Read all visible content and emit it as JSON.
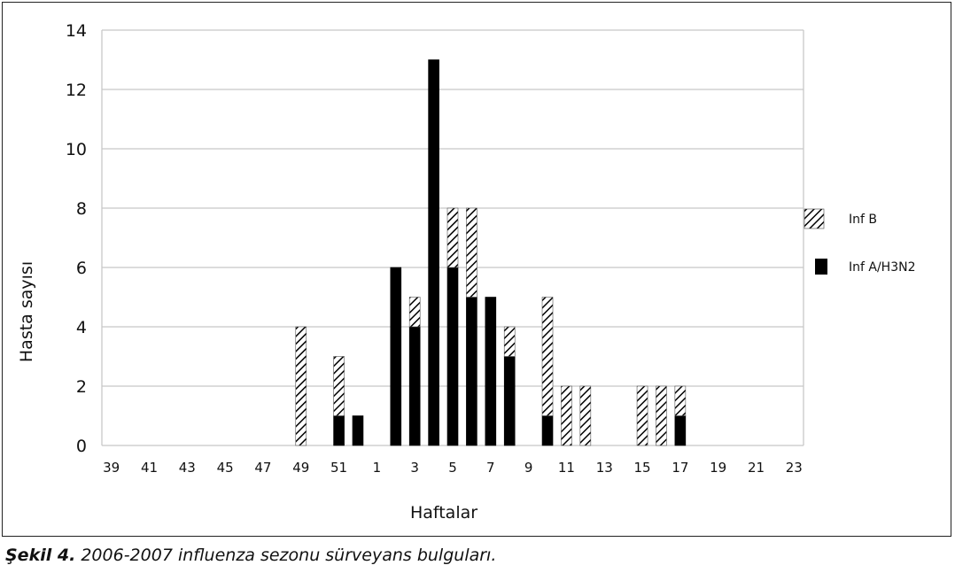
{
  "chart_data": {
    "type": "bar",
    "stacked": true,
    "xlabel": "Haftalar",
    "ylabel": "Hasta sayısı",
    "ylim": [
      0,
      14
    ],
    "y_ticks": [
      0,
      2,
      4,
      6,
      8,
      10,
      12,
      14
    ],
    "grid": true,
    "legend_position": "right",
    "categories": [
      "39",
      "40",
      "41",
      "42",
      "43",
      "44",
      "45",
      "46",
      "47",
      "48",
      "49",
      "50",
      "51",
      "52",
      "1",
      "2",
      "3",
      "4",
      "5",
      "6",
      "7",
      "8",
      "9",
      "10",
      "11",
      "12",
      "13",
      "14",
      "15",
      "16",
      "17",
      "18",
      "19",
      "20",
      "21",
      "22",
      "23"
    ],
    "x_tick_labels": [
      "39",
      "41",
      "43",
      "45",
      "47",
      "49",
      "51",
      "1",
      "3",
      "5",
      "7",
      "9",
      "11",
      "13",
      "15",
      "17",
      "19",
      "21",
      "23"
    ],
    "series": [
      {
        "name": "Inf A/H3N2",
        "color": "#000000",
        "pattern": "solid",
        "values": [
          0,
          0,
          0,
          0,
          0,
          0,
          0,
          0,
          0,
          0,
          0,
          0,
          1,
          1,
          0,
          6,
          4,
          13,
          6,
          5,
          5,
          3,
          0,
          1,
          0,
          0,
          0,
          0,
          0,
          0,
          1,
          0,
          0,
          0,
          0,
          0,
          0
        ]
      },
      {
        "name": "Inf B",
        "color": "#ffffff",
        "pattern": "diagonal-hatch",
        "values": [
          0,
          0,
          0,
          0,
          0,
          0,
          0,
          0,
          0,
          0,
          4,
          0,
          2,
          0,
          0,
          0,
          1,
          0,
          2,
          3,
          0,
          1,
          0,
          4,
          2,
          2,
          0,
          0,
          2,
          2,
          1,
          0,
          0,
          0,
          0,
          0,
          0
        ]
      }
    ]
  },
  "caption": {
    "label": "Şekil 4.",
    "text": "2006-2007 influenza sezonu sürveyans bulguları."
  }
}
